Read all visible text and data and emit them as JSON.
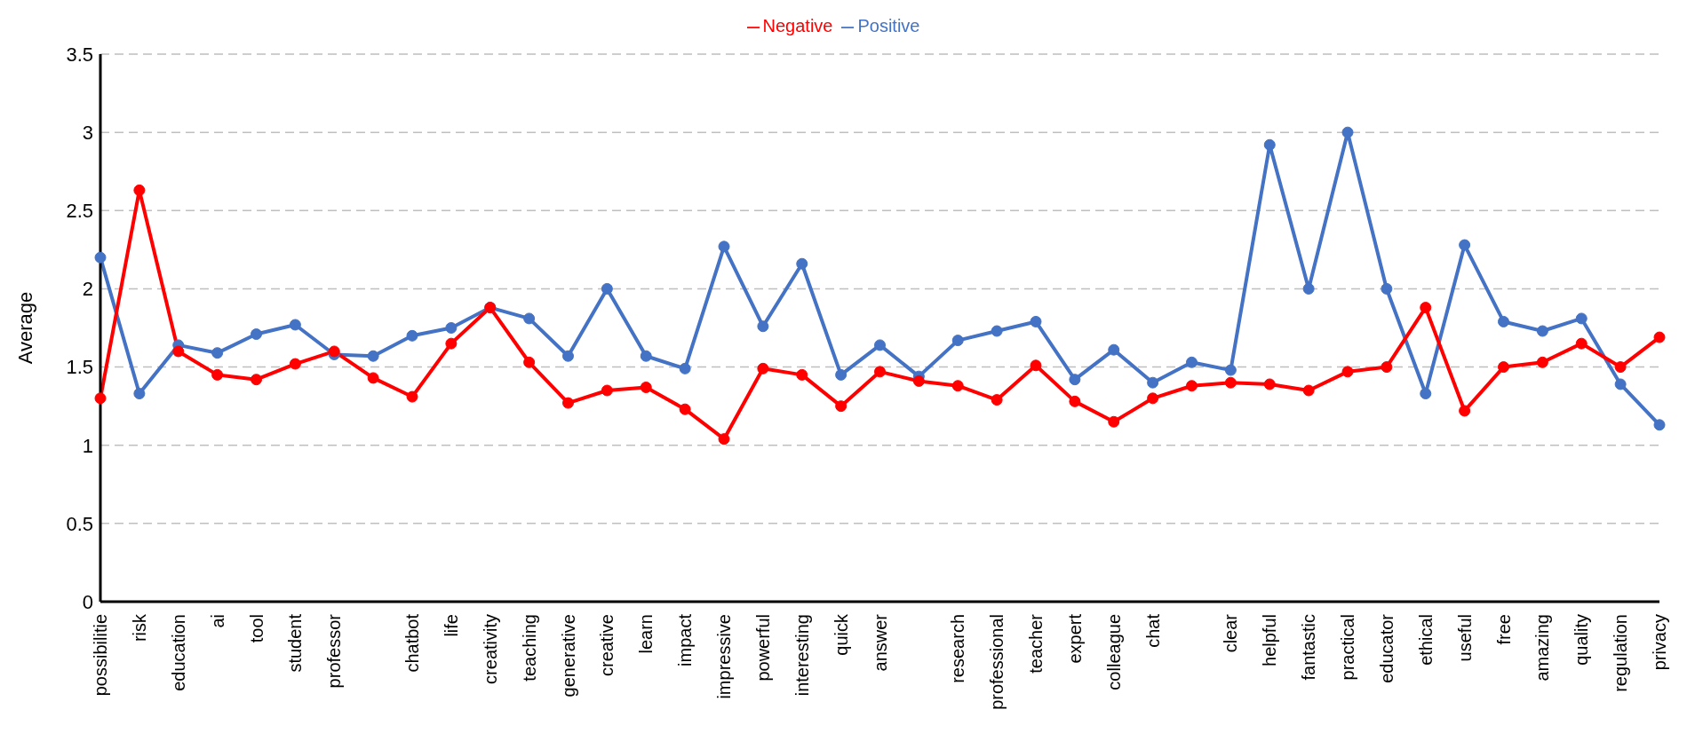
{
  "chart_data": {
    "type": "line",
    "ylabel": "Average",
    "categories": [
      "possibilitie",
      "risk",
      "education",
      "ai",
      "tool",
      "student",
      "professor",
      null,
      "chatbot",
      "life",
      "creativity",
      "teaching",
      "generative",
      "creative",
      "learn",
      "impact",
      "impressive",
      "powerful",
      "interesting",
      "quick",
      "answer",
      null,
      "research",
      "professional",
      "teacher",
      "expert",
      "colleague",
      "chat",
      null,
      "clear",
      "helpful",
      "fantastic",
      "practical",
      "educator",
      "ethical",
      "useful",
      "free",
      "amazing",
      "quality",
      "regulation",
      "privacy"
    ],
    "series": [
      {
        "name": "Positive",
        "color": "#4472c4",
        "values": [
          2.2,
          1.33,
          1.64,
          1.59,
          1.71,
          1.77,
          1.58,
          1.57,
          1.7,
          1.75,
          1.88,
          1.81,
          1.57,
          2.0,
          1.57,
          1.49,
          2.27,
          1.76,
          2.16,
          1.45,
          1.64,
          1.44,
          1.67,
          1.73,
          1.79,
          1.42,
          1.61,
          1.4,
          1.53,
          1.48,
          2.92,
          2.0,
          3.0,
          2.0,
          1.33,
          2.28,
          1.79,
          1.73,
          1.81,
          1.39,
          1.13
        ]
      },
      {
        "name": "Negative",
        "color": "#ff0000",
        "values": [
          1.3,
          2.63,
          1.6,
          1.45,
          1.42,
          1.52,
          1.6,
          1.43,
          1.31,
          1.65,
          1.88,
          1.53,
          1.27,
          1.35,
          1.37,
          1.23,
          1.04,
          1.49,
          1.45,
          1.25,
          1.47,
          1.41,
          1.38,
          1.29,
          1.51,
          1.28,
          1.15,
          1.3,
          1.38,
          1.4,
          1.39,
          1.35,
          1.47,
          1.5,
          1.88,
          1.22,
          1.5,
          1.53,
          1.65,
          1.5,
          1.69
        ]
      }
    ],
    "ylim": [
      0,
      3.5
    ],
    "yticks": [
      0,
      0.5,
      1,
      1.5,
      2,
      2.5,
      3,
      3.5
    ],
    "grid": "y",
    "legend": "top",
    "marker": "circle",
    "line_style": "solid"
  }
}
